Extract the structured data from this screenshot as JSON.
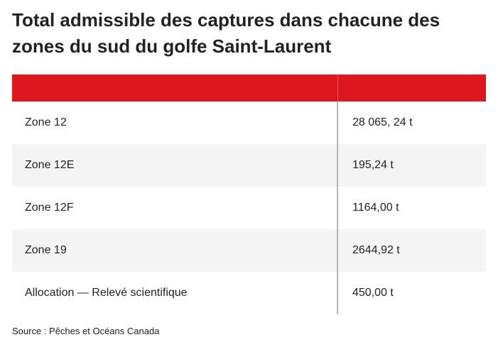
{
  "title": "Total admissible des captures dans chacune des zones du sud du golfe Saint-Laurent",
  "table": {
    "header_color": "#e0161e",
    "columns": [
      "",
      ""
    ],
    "rows": [
      {
        "zone": "Zone 12",
        "value": "28 065, 24 t"
      },
      {
        "zone": "Zone 12E",
        "value": "195,24 t"
      },
      {
        "zone": "Zone 12F",
        "value": "1164,00 t"
      },
      {
        "zone": "Zone 19",
        "value": "2644,92 t"
      },
      {
        "zone": "Allocation — Relevé scientifique",
        "value": "450,00 t"
      }
    ]
  },
  "source": "Source : Pêches et Océans Canada"
}
